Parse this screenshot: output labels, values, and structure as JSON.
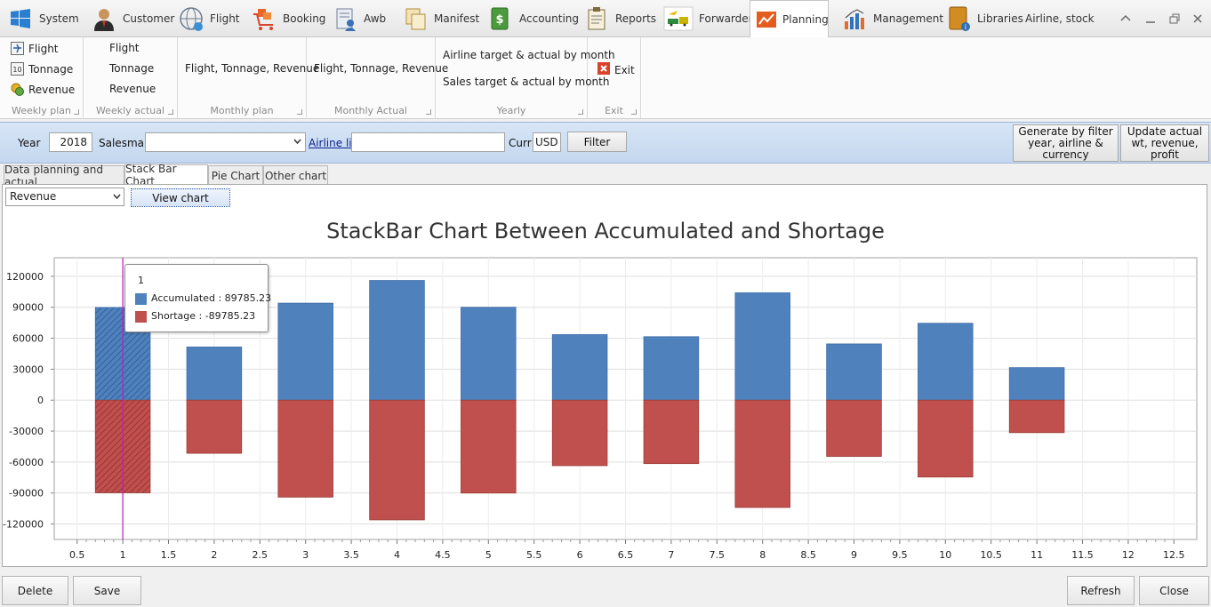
{
  "top_tabs": [
    {
      "label": "System",
      "icon": "windows-icon"
    },
    {
      "label": "Customer",
      "icon": "user-icon"
    },
    {
      "label": "Flight",
      "icon": "globe-icon"
    },
    {
      "label": "Booking",
      "icon": "cart-icon"
    },
    {
      "label": "Awb",
      "icon": "document-user-icon"
    },
    {
      "label": "Manifest",
      "icon": "copy-icon"
    },
    {
      "label": "Accounting",
      "icon": "money-icon"
    },
    {
      "label": "Reports",
      "icon": "clipboard-icon"
    },
    {
      "label": "Forwarder",
      "icon": "transport-icon"
    },
    {
      "label": "Planning",
      "icon": "trend-chart-icon"
    },
    {
      "label": "Management",
      "icon": "bar-chart-icon"
    },
    {
      "label": "Libraries",
      "icon": "book-icon"
    },
    {
      "label": "Airline, stock",
      "icon": ""
    }
  ],
  "active_tab": "Planning",
  "ribbon": {
    "weekly_plan": {
      "caption": "Weekly plan",
      "items": [
        "Flight",
        "Tonnage",
        "Revenue"
      ]
    },
    "weekly_actual": {
      "caption": "Weekly actual",
      "items": [
        "Flight",
        "Tonnage",
        "Revenue"
      ]
    },
    "monthly_plan": {
      "caption": "Monthly plan",
      "item": "Flight, Tonnage, Revenue"
    },
    "monthly_actual": {
      "caption": "Monthly Actual",
      "item": "Flight, Tonnage, Revenue"
    },
    "yearly": {
      "caption": "Yearly",
      "items": [
        "Airline target & actual by month",
        "Sales target & actual by month"
      ]
    },
    "exit": {
      "caption": "Exit",
      "item": "Exit"
    }
  },
  "filter": {
    "year_label": "Year",
    "year_value": "2018",
    "salesman_label": "Salesman",
    "salesman_value": "",
    "airline_link": "Airline list",
    "airline_value": "",
    "curr_label": "Curr",
    "curr_value": "USD",
    "filter_button": "Filter",
    "generate_button": "Generate by filter year, airline & currency",
    "update_button": "Update actual wt, revenue, profit"
  },
  "content_tabs": [
    "Data planning and actual",
    "Stack Bar Chart",
    "Pie Chart",
    "Other chart"
  ],
  "active_content_tab": "Stack Bar Chart",
  "chart_select_value": "Revenue",
  "view_chart_button": "View chart",
  "chart_data": {
    "type": "bar",
    "stacked": true,
    "title": "StackBar Chart Between Accumulated and Shortage",
    "x": [
      1,
      2,
      3,
      4,
      5,
      6,
      7,
      8,
      9,
      10,
      11
    ],
    "series": [
      {
        "name": "Accumulated",
        "color": "#4f81bd",
        "values": [
          89785.23,
          51500,
          94000,
          116000,
          90000,
          63500,
          61500,
          104000,
          54500,
          74500,
          31500
        ]
      },
      {
        "name": "Shortage",
        "color": "#c0504d",
        "values": [
          -89785.23,
          -51500,
          -94000,
          -116000,
          -90000,
          -63500,
          -61500,
          -104000,
          -54500,
          -74500,
          -31500
        ]
      }
    ],
    "ylim": [
      -135000,
      138000
    ],
    "yticks": [
      120000,
      90000,
      60000,
      30000,
      0,
      -30000,
      -60000,
      -90000,
      -120000
    ],
    "xlim": [
      0.25,
      12.75
    ],
    "xticks": [
      "0.5",
      "1",
      "1.5",
      "2",
      "2.5",
      "3",
      "3.5",
      "4",
      "4.5",
      "5",
      "5.5",
      "6",
      "6.5",
      "7",
      "7.5",
      "8",
      "8.5",
      "9",
      "9.5",
      "10",
      "10.5",
      "11",
      "11.5",
      "12",
      "12.5"
    ],
    "grid": true,
    "crosshair_x": 1,
    "highlighted_index": 0
  },
  "tooltip": {
    "title": "1",
    "lines": [
      "Accumulated : 89785.23",
      "Shortage : -89785.23"
    ]
  },
  "bottom_buttons": {
    "delete": "Delete",
    "save": "Save",
    "refresh": "Refresh",
    "close": "Close"
  }
}
